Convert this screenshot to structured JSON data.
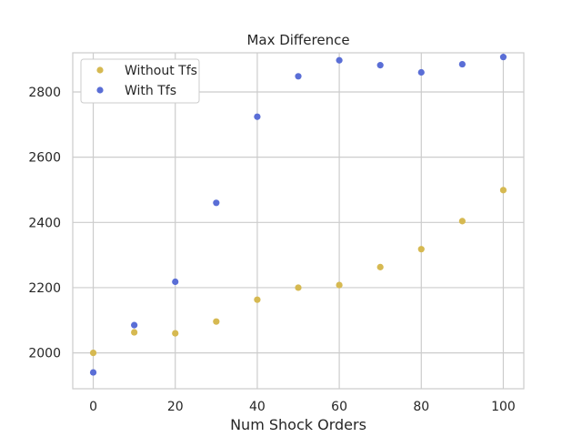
{
  "chart_data": {
    "type": "scatter",
    "title": "Max Difference",
    "xlabel": "Num Shock Orders",
    "ylabel": "",
    "xlim": [
      -5,
      105
    ],
    "ylim": [
      1890,
      2920
    ],
    "xticks": [
      0,
      20,
      40,
      60,
      80,
      100
    ],
    "yticks": [
      2000,
      2200,
      2400,
      2600,
      2800
    ],
    "grid": true,
    "legend_position": "top-left",
    "x": [
      0,
      10,
      20,
      30,
      40,
      50,
      60,
      70,
      80,
      90,
      100
    ],
    "series": [
      {
        "name": "Without Tfs",
        "color": "#d6b951",
        "values": [
          2000,
          2063,
          2060,
          2096,
          2163,
          2200,
          2208,
          2263,
          2318,
          2404,
          2499
        ]
      },
      {
        "name": "With Tfs",
        "color": "#5a6ed6",
        "values": [
          1940,
          2085,
          2218,
          2460,
          2724,
          2848,
          2897,
          2882,
          2860,
          2885,
          2907
        ]
      }
    ]
  }
}
